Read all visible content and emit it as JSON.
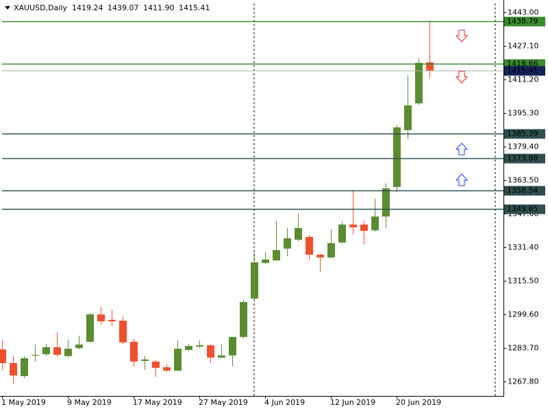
{
  "chart_data": {
    "type": "candlestick",
    "title": "XAUUSD,Daily",
    "header_values": [
      "1419.24",
      "1439.07",
      "1411.90",
      "1415.41"
    ],
    "categories": [
      "1 May 2019",
      null,
      null,
      null,
      null,
      null,
      "9 May 2019",
      null,
      null,
      null,
      null,
      null,
      "17 May 2019",
      null,
      null,
      null,
      null,
      null,
      "27 May 2019",
      null,
      null,
      null,
      null,
      null,
      "4 Jun 2019",
      null,
      null,
      null,
      null,
      null,
      "12 Jun 2019",
      null,
      null,
      null,
      null,
      null,
      "20 Jun 2019",
      null,
      null,
      null
    ],
    "open": [
      1283.1,
      1276.6,
      1270.4,
      1280.2,
      1280.8,
      1284.1,
      1279.9,
      1283.7,
      1286.7,
      1299.7,
      1297.1,
      1296.7,
      1286.7,
      1277.6,
      1277.3,
      1274.6,
      1273.0,
      1282.8,
      1284.4,
      1285.0,
      1279.2,
      1280.2,
      1289.0,
      1307.2,
      1324.1,
      1325.3,
      1330.9,
      1335.1,
      1336.4,
      1328.0,
      1326.7,
      1333.8,
      1342.3,
      1342.3,
      1339.6,
      1346.1,
      1360.1,
      1387.1,
      1399.8,
      1419.24
    ],
    "high": [
      1287.3,
      1279.9,
      1279.9,
      1285.4,
      1285.7,
      1291.2,
      1287.6,
      1289.6,
      1300.3,
      1303.3,
      1301.9,
      1298.7,
      1288.0,
      1279.9,
      1277.9,
      1275.9,
      1287.3,
      1285.7,
      1287.3,
      1285.4,
      1285.4,
      1289.0,
      1306.5,
      1329.3,
      1329.3,
      1343.9,
      1340.6,
      1347.8,
      1337.4,
      1328.6,
      1339.9,
      1343.6,
      1358.5,
      1344.2,
      1354.6,
      1361.8,
      1389.4,
      1413.1,
      1421.2,
      1439.07
    ],
    "low": [
      1273.3,
      1266.9,
      1269.4,
      1277.3,
      1279.9,
      1279.6,
      1279.2,
      1283.1,
      1286.4,
      1294.8,
      1294.2,
      1285.7,
      1275.0,
      1273.4,
      1270.1,
      1272.4,
      1272.7,
      1282.4,
      1283.7,
      1276.6,
      1278.9,
      1275.0,
      1288.3,
      1306.8,
      1323.4,
      1325.0,
      1327.3,
      1334.4,
      1325.3,
      1319.8,
      1326.3,
      1333.2,
      1337.7,
      1332.8,
      1339.0,
      1340.6,
      1357.5,
      1382.9,
      1399.1,
      1411.9
    ],
    "close": [
      1276.6,
      1270.7,
      1278.9,
      1280.5,
      1284.1,
      1280.5,
      1283.4,
      1285.4,
      1299.7,
      1296.4,
      1296.4,
      1286.4,
      1277.3,
      1278.3,
      1274.3,
      1273.0,
      1283.4,
      1284.7,
      1285.0,
      1279.2,
      1280.2,
      1289.0,
      1305.5,
      1324.4,
      1325.7,
      1330.2,
      1335.8,
      1340.6,
      1328.0,
      1326.7,
      1333.5,
      1342.3,
      1341.0,
      1339.3,
      1346.1,
      1359.5,
      1388.4,
      1398.8,
      1419.0,
      1415.41
    ],
    "up_color": "#5a8c32",
    "down_color": "#f0502d",
    "ylim": [
      1261.0,
      1447.2
    ],
    "yticks": [
      {
        "value": 1443.0,
        "label": "1443.00"
      },
      {
        "value": 1427.1,
        "label": "1427.10"
      },
      {
        "value": 1411.2,
        "label": "1411.20"
      },
      {
        "value": 1395.3,
        "label": "1395.30"
      },
      {
        "value": 1379.4,
        "label": "1379.40"
      },
      {
        "value": 1363.5,
        "label": "1363.50"
      },
      {
        "value": 1347.6,
        "label": "1347.60"
      },
      {
        "value": 1331.4,
        "label": "1331.40"
      },
      {
        "value": 1315.5,
        "label": "1315.50"
      },
      {
        "value": 1299.6,
        "label": "1299.60"
      },
      {
        "value": 1283.7,
        "label": "1283.70"
      },
      {
        "value": 1267.8,
        "label": "1267.80"
      }
    ],
    "levels": [
      {
        "value": 1438.79,
        "color": "#3a8a2e"
      },
      {
        "value": 1418.66,
        "color": "#3a8a2e"
      },
      {
        "value": 1415.41,
        "color": "#b0b0b0",
        "label_color": "#16235a"
      },
      {
        "value": 1385.39,
        "color": "#2f4f4f"
      },
      {
        "value": 1373.88,
        "color": "#2f4f4f"
      },
      {
        "value": 1358.54,
        "color": "#2f4f4f"
      },
      {
        "value": 1349.65,
        "color": "#2f4f4f"
      }
    ]
  }
}
